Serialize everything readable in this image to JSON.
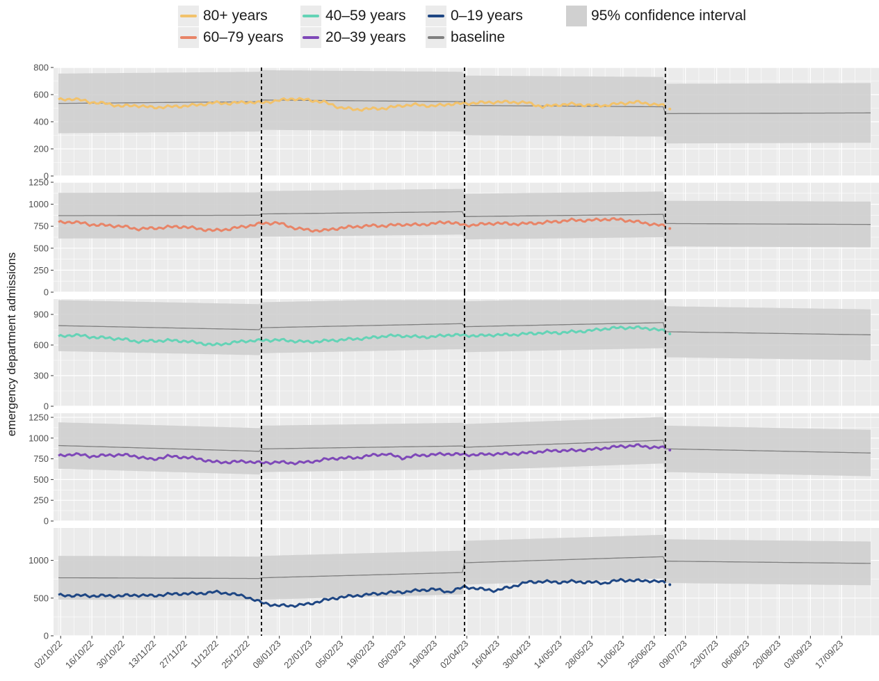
{
  "legend": {
    "items": [
      {
        "label": "80+ years",
        "color": "#f2c26b"
      },
      {
        "label": "60–79 years",
        "color": "#e88467"
      },
      {
        "label": "40–59 years",
        "color": "#64d3b6"
      },
      {
        "label": "20–39 years",
        "color": "#7e48b8"
      },
      {
        "label": "0–19 years",
        "color": "#1e4683"
      },
      {
        "label": "baseline",
        "color": "#7f7f7f"
      },
      {
        "label": "95% confidence interval",
        "color": "#cccccc"
      }
    ]
  },
  "chart_data": {
    "type": "line",
    "ylabel": "emergency department admissions",
    "x_ticks": [
      "02/10/22",
      "16/10/22",
      "30/10/22",
      "13/11/22",
      "27/11/22",
      "11/12/22",
      "25/12/22",
      "08/01/23",
      "22/01/23",
      "05/02/23",
      "19/02/23",
      "05/03/23",
      "19/03/23",
      "02/04/23",
      "16/04/23",
      "30/04/23",
      "14/05/23",
      "28/05/23",
      "11/06/23",
      "25/06/23",
      "09/07/23",
      "23/07/23",
      "06/08/23",
      "20/08/23",
      "03/09/23",
      "17/09/23"
    ],
    "x_range": [
      "01/10/22",
      "30/09/23"
    ],
    "data_end": "30/06/23",
    "vlines": [
      "31/12/22",
      "01/04/23",
      "30/06/23"
    ],
    "grid": true,
    "legend_position": "top",
    "panels": [
      {
        "name": "80+ years",
        "color": "#f2c26b",
        "ylim": [
          0,
          800
        ],
        "yticks": [
          0,
          200,
          400,
          600,
          800
        ],
        "series_anchor_days": [
          0,
          7,
          14,
          21,
          28,
          35,
          42,
          49,
          56,
          63,
          70,
          77,
          84,
          91,
          98,
          105,
          112,
          119,
          126,
          133,
          140,
          147,
          154,
          161,
          168,
          175,
          182,
          189,
          196,
          203,
          210,
          217,
          224,
          231,
          238,
          245,
          252,
          259,
          266,
          273
        ],
        "series_values": [
          560,
          570,
          545,
          535,
          515,
          520,
          505,
          510,
          515,
          525,
          540,
          535,
          545,
          540,
          555,
          570,
          560,
          545,
          505,
          490,
          495,
          500,
          520,
          525,
          515,
          530,
          535,
          540,
          545,
          545,
          540,
          510,
          525,
          530,
          520,
          520,
          535,
          545,
          530,
          515
        ],
        "baseline_anchor_days": [
          0,
          91,
          92,
          182,
          183,
          272,
          273,
          364
        ],
        "baseline_values": [
          535,
          548,
          560,
          548,
          520,
          510,
          460,
          465
        ],
        "ci_half_width": 220
      },
      {
        "name": "60–79 years",
        "color": "#e88467",
        "ylim": [
          0,
          1250
        ],
        "yticks": [
          0,
          250,
          500,
          750,
          1000,
          1250
        ],
        "series_anchor_days": [
          0,
          7,
          14,
          21,
          28,
          35,
          42,
          49,
          56,
          63,
          70,
          77,
          84,
          91,
          98,
          105,
          112,
          119,
          126,
          133,
          140,
          147,
          154,
          161,
          168,
          175,
          182,
          189,
          196,
          203,
          210,
          217,
          224,
          231,
          238,
          245,
          252,
          259,
          266,
          273
        ],
        "series_values": [
          790,
          800,
          770,
          760,
          750,
          720,
          725,
          740,
          745,
          720,
          700,
          720,
          750,
          780,
          790,
          735,
          705,
          700,
          730,
          745,
          755,
          755,
          770,
          765,
          780,
          800,
          760,
          770,
          785,
          775,
          780,
          790,
          805,
          820,
          815,
          830,
          825,
          800,
          775,
          745
        ],
        "baseline_anchor_days": [
          0,
          91,
          92,
          182,
          183,
          272,
          273,
          364
        ],
        "baseline_values": [
          870,
          875,
          890,
          915,
          860,
          885,
          780,
          770
        ],
        "ci_half_width": 260
      },
      {
        "name": "40–59 years",
        "color": "#64d3b6",
        "ylim": [
          0,
          1050
        ],
        "yticks": [
          0,
          300,
          600,
          900
        ],
        "series_anchor_days": [
          0,
          7,
          14,
          21,
          28,
          35,
          42,
          49,
          56,
          63,
          70,
          77,
          84,
          91,
          98,
          105,
          112,
          119,
          126,
          133,
          140,
          147,
          154,
          161,
          168,
          175,
          182,
          189,
          196,
          203,
          210,
          217,
          224,
          231,
          238,
          245,
          252,
          259,
          266,
          273
        ],
        "series_values": [
          680,
          700,
          680,
          670,
          660,
          635,
          640,
          645,
          640,
          620,
          600,
          620,
          640,
          645,
          650,
          640,
          630,
          640,
          650,
          660,
          670,
          690,
          690,
          680,
          680,
          700,
          695,
          690,
          700,
          700,
          710,
          720,
          720,
          730,
          740,
          760,
          770,
          770,
          760,
          730
        ],
        "baseline_anchor_days": [
          0,
          91,
          92,
          182,
          183,
          272,
          273,
          364
        ],
        "baseline_values": [
          790,
          750,
          770,
          810,
          780,
          820,
          730,
          700
        ],
        "ci_half_width": 250
      },
      {
        "name": "20–39 years",
        "color": "#7e48b8",
        "ylim": [
          0,
          1300
        ],
        "yticks": [
          0,
          250,
          500,
          750,
          1000,
          1250
        ],
        "series_anchor_days": [
          0,
          7,
          14,
          21,
          28,
          35,
          42,
          49,
          56,
          63,
          70,
          77,
          84,
          91,
          98,
          105,
          112,
          119,
          126,
          133,
          140,
          147,
          154,
          161,
          168,
          175,
          182,
          189,
          196,
          203,
          210,
          217,
          224,
          231,
          238,
          245,
          252,
          259,
          266,
          273
        ],
        "series_values": [
          780,
          810,
          780,
          790,
          800,
          780,
          740,
          780,
          770,
          750,
          710,
          710,
          720,
          700,
          710,
          700,
          710,
          740,
          760,
          760,
          790,
          810,
          760,
          790,
          800,
          810,
          800,
          800,
          810,
          810,
          820,
          840,
          850,
          850,
          860,
          880,
          900,
          910,
          890,
          880
        ],
        "baseline_anchor_days": [
          0,
          91,
          92,
          182,
          183,
          272,
          273,
          364
        ],
        "baseline_values": [
          910,
          840,
          870,
          905,
          890,
          975,
          870,
          820
        ],
        "ci_half_width": 280
      },
      {
        "name": "0–19 years",
        "color": "#1e4683",
        "ylim": [
          0,
          1430
        ],
        "yticks": [
          0,
          500,
          1000
        ],
        "series_anchor_days": [
          0,
          7,
          14,
          21,
          28,
          35,
          42,
          49,
          56,
          63,
          70,
          77,
          84,
          91,
          98,
          105,
          112,
          119,
          126,
          133,
          140,
          147,
          154,
          161,
          168,
          175,
          182,
          189,
          196,
          203,
          210,
          217,
          224,
          231,
          238,
          245,
          252,
          259,
          266,
          273
        ],
        "series_values": [
          535,
          535,
          530,
          530,
          530,
          540,
          530,
          550,
          560,
          560,
          580,
          560,
          520,
          440,
          400,
          400,
          420,
          470,
          510,
          530,
          550,
          570,
          580,
          600,
          620,
          580,
          650,
          620,
          600,
          650,
          710,
          720,
          710,
          720,
          710,
          700,
          740,
          730,
          730,
          700
        ],
        "baseline_anchor_days": [
          0,
          91,
          92,
          182,
          183,
          272,
          273,
          364
        ],
        "baseline_values": [
          770,
          760,
          770,
          840,
          970,
          1050,
          990,
          960
        ],
        "ci_half_width": 290
      }
    ]
  }
}
